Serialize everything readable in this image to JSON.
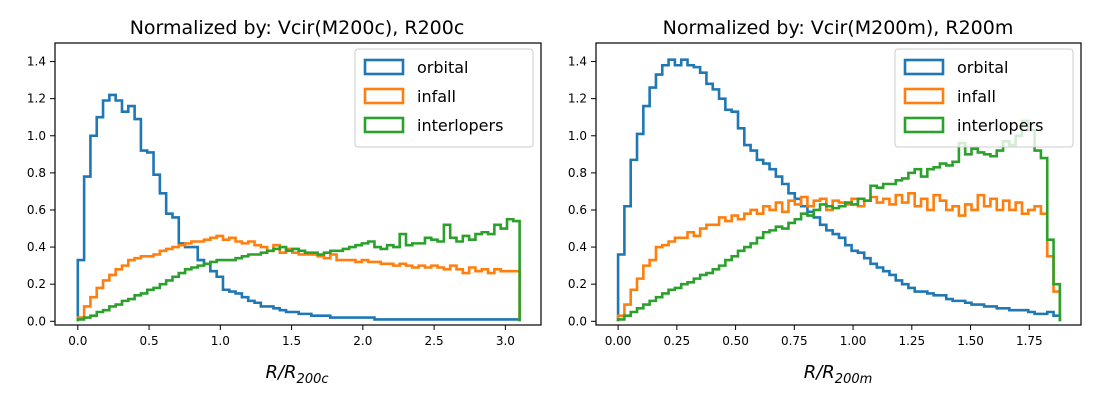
{
  "chart_data": [
    {
      "type": "step-histogram",
      "title": "Normalized by: Vcir(M200c), R200c",
      "xlabel": "R/R",
      "xlabel_sub": "200c",
      "ylabel": "",
      "xlim": [
        -0.16,
        3.25
      ],
      "ylim": [
        -0.02,
        1.5
      ],
      "xticks": [
        0.0,
        0.5,
        1.0,
        1.5,
        2.0,
        2.5,
        3.0
      ],
      "xtick_labels": [
        "0.0",
        "0.5",
        "1.0",
        "1.5",
        "2.0",
        "2.5",
        "3.0"
      ],
      "yticks": [
        0.0,
        0.2,
        0.4,
        0.6,
        0.8,
        1.0,
        1.2,
        1.4
      ],
      "ytick_labels": [
        "0.0",
        "0.2",
        "0.4",
        "0.6",
        "0.8",
        "1.0",
        "1.2",
        "1.4"
      ],
      "legend_position": "top-right",
      "bin_edges_range": [
        0.0,
        3.1
      ],
      "series": [
        {
          "name": "orbital",
          "color": "#1f77b4",
          "values": [
            0.33,
            0.78,
            1.0,
            1.1,
            1.19,
            1.22,
            1.19,
            1.13,
            1.16,
            1.09,
            0.92,
            0.91,
            0.79,
            0.69,
            0.58,
            0.56,
            0.42,
            0.4,
            0.4,
            0.33,
            0.31,
            0.27,
            0.24,
            0.17,
            0.16,
            0.15,
            0.13,
            0.11,
            0.1,
            0.08,
            0.08,
            0.07,
            0.06,
            0.05,
            0.05,
            0.04,
            0.04,
            0.03,
            0.03,
            0.03,
            0.02,
            0.02,
            0.02,
            0.02,
            0.02,
            0.02,
            0.02,
            0.01,
            0.01,
            0.01,
            0.01,
            0.01,
            0.01,
            0.01,
            0.01,
            0.01,
            0.01,
            0.01,
            0.01,
            0.01,
            0.01,
            0.01,
            0.01,
            0.01,
            0.01,
            0.01,
            0.01,
            0.01,
            0.01,
            0.01
          ]
        },
        {
          "name": "infall",
          "color": "#ff7f0e",
          "values": [
            0.02,
            0.08,
            0.13,
            0.18,
            0.22,
            0.25,
            0.28,
            0.3,
            0.33,
            0.34,
            0.35,
            0.35,
            0.36,
            0.38,
            0.39,
            0.4,
            0.41,
            0.42,
            0.43,
            0.43,
            0.44,
            0.45,
            0.46,
            0.44,
            0.45,
            0.43,
            0.42,
            0.43,
            0.41,
            0.4,
            0.38,
            0.41,
            0.37,
            0.39,
            0.37,
            0.36,
            0.36,
            0.36,
            0.35,
            0.34,
            0.36,
            0.33,
            0.33,
            0.33,
            0.32,
            0.33,
            0.32,
            0.32,
            0.31,
            0.31,
            0.3,
            0.31,
            0.3,
            0.29,
            0.3,
            0.29,
            0.3,
            0.29,
            0.28,
            0.3,
            0.28,
            0.26,
            0.29,
            0.27,
            0.28,
            0.26,
            0.28,
            0.27,
            0.27,
            0.27
          ]
        },
        {
          "name": "interlopers",
          "color": "#2ca02c",
          "values": [
            0.01,
            0.02,
            0.03,
            0.05,
            0.06,
            0.08,
            0.09,
            0.11,
            0.12,
            0.14,
            0.15,
            0.17,
            0.18,
            0.2,
            0.22,
            0.24,
            0.26,
            0.28,
            0.29,
            0.3,
            0.31,
            0.32,
            0.33,
            0.33,
            0.33,
            0.34,
            0.35,
            0.36,
            0.36,
            0.37,
            0.38,
            0.39,
            0.4,
            0.38,
            0.39,
            0.38,
            0.37,
            0.37,
            0.36,
            0.37,
            0.38,
            0.38,
            0.39,
            0.4,
            0.41,
            0.42,
            0.43,
            0.4,
            0.39,
            0.41,
            0.4,
            0.47,
            0.41,
            0.42,
            0.42,
            0.45,
            0.44,
            0.43,
            0.52,
            0.45,
            0.43,
            0.46,
            0.44,
            0.47,
            0.48,
            0.47,
            0.52,
            0.5,
            0.55,
            0.54
          ]
        }
      ]
    },
    {
      "type": "step-histogram",
      "title": "Normalized by: Vcir(M200m), R200m",
      "xlabel": "R/R",
      "xlabel_sub": "200m",
      "ylabel": "",
      "xlim": [
        -0.094,
        1.97
      ],
      "ylim": [
        -0.02,
        1.5
      ],
      "xticks": [
        0.0,
        0.25,
        0.5,
        0.75,
        1.0,
        1.25,
        1.5,
        1.75
      ],
      "xtick_labels": [
        "0.00",
        "0.25",
        "0.50",
        "0.75",
        "1.00",
        "1.25",
        "1.50",
        "1.75"
      ],
      "yticks": [
        0.0,
        0.2,
        0.4,
        0.6,
        0.8,
        1.0,
        1.2,
        1.4
      ],
      "ytick_labels": [
        "0.0",
        "0.2",
        "0.4",
        "0.6",
        "0.8",
        "1.0",
        "1.2",
        "1.4"
      ],
      "legend_position": "top-right",
      "bin_edges_range": [
        0.0,
        1.88
      ],
      "series": [
        {
          "name": "orbital",
          "color": "#1f77b4",
          "values": [
            0.36,
            0.62,
            0.87,
            1.01,
            1.16,
            1.26,
            1.33,
            1.38,
            1.41,
            1.38,
            1.41,
            1.38,
            1.37,
            1.34,
            1.28,
            1.25,
            1.2,
            1.14,
            1.13,
            1.04,
            0.95,
            0.92,
            0.87,
            0.85,
            0.82,
            0.78,
            0.74,
            0.69,
            0.66,
            0.62,
            0.59,
            0.56,
            0.52,
            0.49,
            0.47,
            0.45,
            0.41,
            0.38,
            0.37,
            0.34,
            0.31,
            0.29,
            0.27,
            0.25,
            0.22,
            0.2,
            0.18,
            0.16,
            0.16,
            0.15,
            0.14,
            0.14,
            0.12,
            0.11,
            0.11,
            0.1,
            0.09,
            0.09,
            0.08,
            0.08,
            0.07,
            0.07,
            0.06,
            0.06,
            0.06,
            0.05,
            0.04,
            0.04,
            0.05,
            0.03
          ]
        },
        {
          "name": "infall",
          "color": "#ff7f0e",
          "values": [
            0.03,
            0.09,
            0.17,
            0.23,
            0.3,
            0.33,
            0.4,
            0.41,
            0.43,
            0.45,
            0.45,
            0.48,
            0.46,
            0.5,
            0.52,
            0.52,
            0.56,
            0.54,
            0.57,
            0.55,
            0.58,
            0.6,
            0.58,
            0.62,
            0.6,
            0.64,
            0.59,
            0.65,
            0.63,
            0.67,
            0.62,
            0.65,
            0.66,
            0.6,
            0.65,
            0.64,
            0.63,
            0.66,
            0.62,
            0.65,
            0.67,
            0.64,
            0.66,
            0.63,
            0.68,
            0.64,
            0.69,
            0.62,
            0.66,
            0.6,
            0.68,
            0.65,
            0.6,
            0.62,
            0.57,
            0.63,
            0.6,
            0.68,
            0.62,
            0.66,
            0.6,
            0.65,
            0.6,
            0.64,
            0.58,
            0.6,
            0.62,
            0.58,
            0.35,
            0.16
          ]
        },
        {
          "name": "interlopers",
          "color": "#2ca02c",
          "values": [
            0.01,
            0.03,
            0.05,
            0.07,
            0.09,
            0.11,
            0.13,
            0.15,
            0.17,
            0.18,
            0.2,
            0.21,
            0.23,
            0.25,
            0.26,
            0.28,
            0.3,
            0.33,
            0.35,
            0.38,
            0.4,
            0.42,
            0.45,
            0.48,
            0.49,
            0.51,
            0.5,
            0.53,
            0.55,
            0.58,
            0.57,
            0.6,
            0.63,
            0.62,
            0.61,
            0.62,
            0.64,
            0.63,
            0.66,
            0.65,
            0.73,
            0.72,
            0.74,
            0.74,
            0.76,
            0.77,
            0.8,
            0.82,
            0.78,
            0.82,
            0.83,
            0.85,
            0.84,
            0.86,
            0.96,
            0.9,
            0.93,
            0.91,
            0.9,
            0.89,
            0.92,
            0.97,
            0.95,
            1.0,
            1.08,
            1.03,
            0.92,
            0.88,
            0.44,
            0.2
          ]
        }
      ]
    }
  ]
}
